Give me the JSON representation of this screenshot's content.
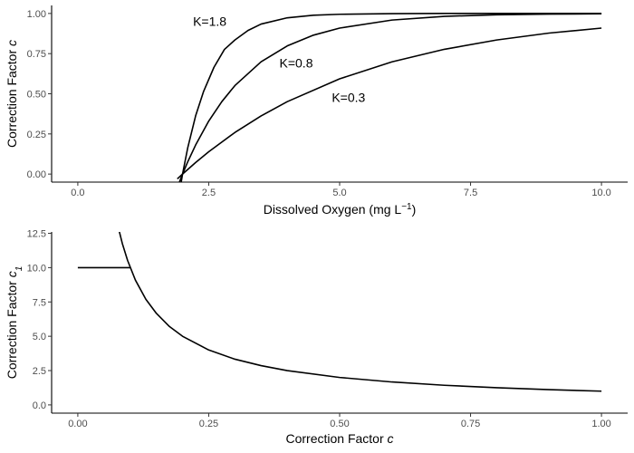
{
  "chart_data": [
    {
      "type": "line",
      "xlabel_main": "Dissolved Oxygen (mg L",
      "xlabel_sup": "−1",
      "xlabel_end": ")",
      "ylabel_main": "Correction Factor ",
      "ylabel_var": "c",
      "xlim": [
        -0.5,
        10.5
      ],
      "ylim": [
        -0.05,
        1.05
      ],
      "x_ticks": [
        {
          "value": 0.0,
          "label": "0.0"
        },
        {
          "value": 2.5,
          "label": "2.5"
        },
        {
          "value": 5.0,
          "label": "5.0"
        },
        {
          "value": 7.5,
          "label": "7.5"
        },
        {
          "value": 10.0,
          "label": "10.0"
        }
      ],
      "y_ticks": [
        {
          "value": 0.0,
          "label": "0.00"
        },
        {
          "value": 0.25,
          "label": "0.25"
        },
        {
          "value": 0.5,
          "label": "0.50"
        },
        {
          "value": 0.75,
          "label": "0.75"
        },
        {
          "value": 1.0,
          "label": "1.00"
        }
      ],
      "grid": false,
      "series": [
        {
          "label": "K=1.8",
          "x": [
            1.9,
            2.0,
            2.1,
            2.25,
            2.4,
            2.6,
            2.8,
            3.0,
            3.25,
            3.5,
            4.0,
            4.5,
            5.0,
            6.0,
            7.0,
            8.0,
            10.0
          ],
          "y": [
            -0.197,
            0.0,
            0.165,
            0.363,
            0.513,
            0.665,
            0.776,
            0.835,
            0.894,
            0.934,
            0.973,
            0.989,
            0.995,
            0.999,
            1.0,
            1.0,
            1.0
          ]
        },
        {
          "label": "K=0.8",
          "x": [
            1.9,
            2.0,
            2.1,
            2.25,
            2.5,
            2.75,
            3.0,
            3.5,
            4.0,
            4.5,
            5.0,
            6.0,
            7.0,
            8.0,
            9.0,
            10.0
          ],
          "y": [
            -0.083,
            0.0,
            0.077,
            0.181,
            0.33,
            0.451,
            0.551,
            0.699,
            0.798,
            0.865,
            0.909,
            0.959,
            0.982,
            0.992,
            0.996,
            0.998
          ]
        },
        {
          "label": "K=0.3",
          "x": [
            1.9,
            2.0,
            2.25,
            2.5,
            3.0,
            3.5,
            4.0,
            5.0,
            6.0,
            7.0,
            8.0,
            9.0,
            10.0
          ],
          "y": [
            -0.03,
            0.0,
            0.072,
            0.139,
            0.259,
            0.362,
            0.451,
            0.593,
            0.699,
            0.777,
            0.835,
            0.878,
            0.909
          ]
        }
      ],
      "curve_labels": [
        {
          "text": "K=1.8",
          "x": 2.2,
          "y": 0.952
        },
        {
          "text": "K=0.8",
          "x": 3.85,
          "y": 0.693
        },
        {
          "text": "K=0.3",
          "x": 4.85,
          "y": 0.478
        }
      ]
    },
    {
      "type": "line",
      "xlabel_main": "Correction Factor ",
      "xlabel_var": "c",
      "ylabel_main": "Correction Factor ",
      "ylabel_var": "c",
      "ylabel_sub": "1",
      "xlim": [
        -0.05,
        1.05
      ],
      "ylim": [
        -0.6,
        12.6
      ],
      "x_ticks": [
        {
          "value": 0.0,
          "label": "0.00"
        },
        {
          "value": 0.25,
          "label": "0.25"
        },
        {
          "value": 0.5,
          "label": "0.50"
        },
        {
          "value": 0.75,
          "label": "0.75"
        },
        {
          "value": 1.0,
          "label": "1.00"
        }
      ],
      "y_ticks": [
        {
          "value": 0.0,
          "label": "0.0"
        },
        {
          "value": 2.5,
          "label": "2.5"
        },
        {
          "value": 5.0,
          "label": "5.0"
        },
        {
          "value": 7.5,
          "label": "7.5"
        },
        {
          "value": 10.0,
          "label": "10.0"
        },
        {
          "value": 12.5,
          "label": "12.5"
        }
      ],
      "grid": false,
      "series": [
        {
          "x": [
            0.0,
            0.1
          ],
          "y": [
            10.0,
            10.0
          ]
        },
        {
          "x": [
            0.078,
            0.085,
            0.095,
            0.11,
            0.13,
            0.15,
            0.175,
            0.2,
            0.25,
            0.3,
            0.35,
            0.4,
            0.5,
            0.6,
            0.7,
            0.8,
            0.9,
            1.0
          ],
          "y": [
            12.82,
            11.76,
            10.53,
            9.09,
            7.69,
            6.67,
            5.71,
            5.0,
            4.0,
            3.33,
            2.86,
            2.5,
            2.0,
            1.67,
            1.43,
            1.25,
            1.11,
            1.0
          ]
        }
      ]
    }
  ]
}
